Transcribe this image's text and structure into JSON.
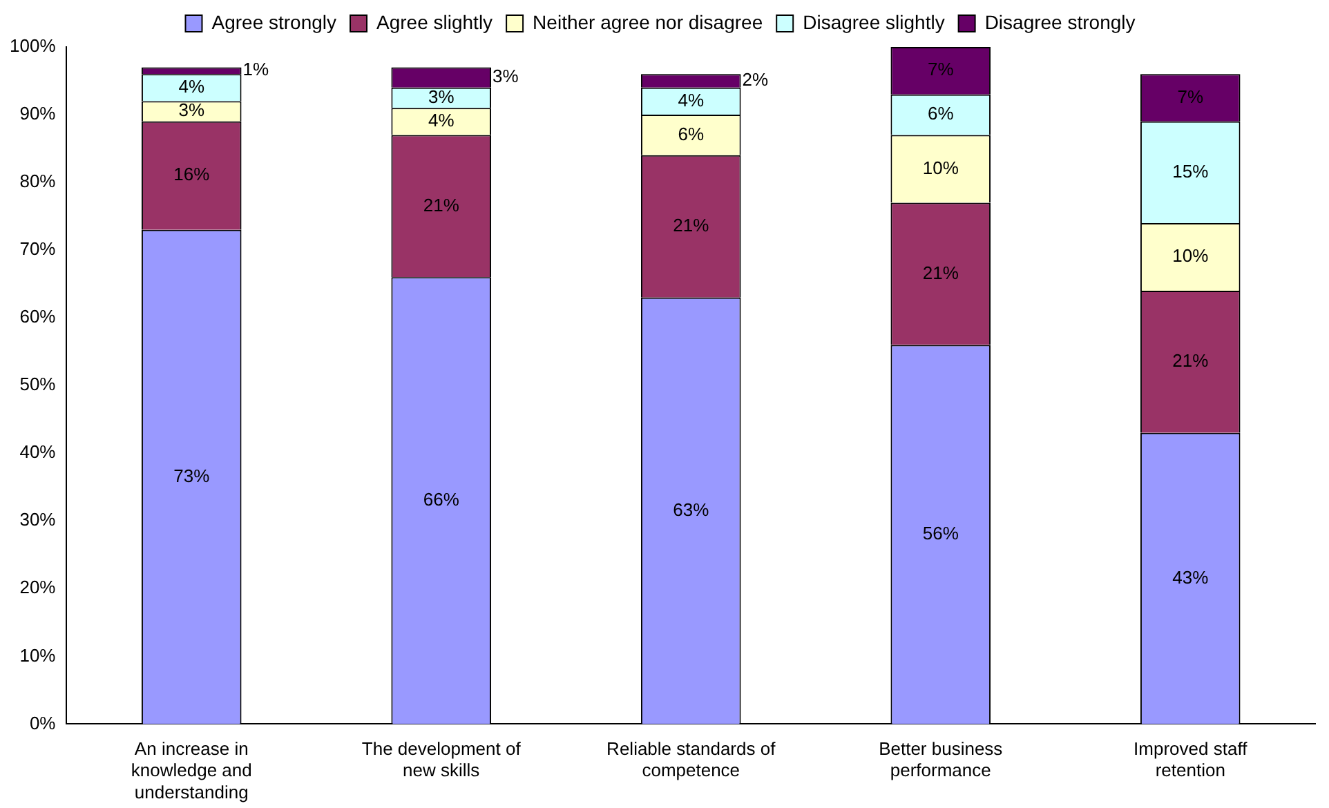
{
  "chart_data": {
    "type": "bar",
    "stacked": true,
    "legend": "top",
    "categories": [
      "An increase in knowledge and understanding",
      "The development of new skills",
      "Reliable standards of competence",
      "Better business performance",
      "Improved staff retention"
    ],
    "series": [
      {
        "name": "Agree strongly",
        "color": "#9999ff",
        "values": [
          73,
          66,
          63,
          56,
          43
        ],
        "value_labels": [
          "73%",
          "66%",
          "63%",
          "56%",
          "43%"
        ]
      },
      {
        "name": "Agree slightly",
        "color": "#993366",
        "values": [
          16,
          21,
          21,
          21,
          21
        ],
        "value_labels": [
          "16%",
          "21%",
          "21%",
          "21%",
          "21%"
        ]
      },
      {
        "name": "Neither agree nor disagree",
        "color": "#ffffcc",
        "values": [
          3,
          4,
          6,
          10,
          10
        ],
        "value_labels": [
          "3%",
          "4%",
          "6%",
          "10%",
          "10%"
        ]
      },
      {
        "name": "Disagree slightly",
        "color": "#ccffff",
        "values": [
          4,
          3,
          4,
          6,
          15
        ],
        "value_labels": [
          "4%",
          "3%",
          "4%",
          "6%",
          "15%"
        ]
      },
      {
        "name": "Disagree strongly",
        "color": "#660066",
        "values": [
          1,
          3,
          2,
          7,
          7
        ],
        "value_labels": [
          "1%",
          "3%",
          "2%",
          "7%",
          "7%"
        ]
      }
    ],
    "ylim": [
      0,
      100
    ],
    "yticks": [
      {
        "value": 0,
        "label": "0%"
      },
      {
        "value": 10,
        "label": "10%"
      },
      {
        "value": 20,
        "label": "20%"
      },
      {
        "value": 30,
        "label": "30%"
      },
      {
        "value": 40,
        "label": "40%"
      },
      {
        "value": 50,
        "label": "50%"
      },
      {
        "value": 60,
        "label": "60%"
      },
      {
        "value": 70,
        "label": "70%"
      },
      {
        "value": 80,
        "label": "80%"
      },
      {
        "value": 90,
        "label": "90%"
      },
      {
        "value": 100,
        "label": "100%"
      }
    ]
  }
}
